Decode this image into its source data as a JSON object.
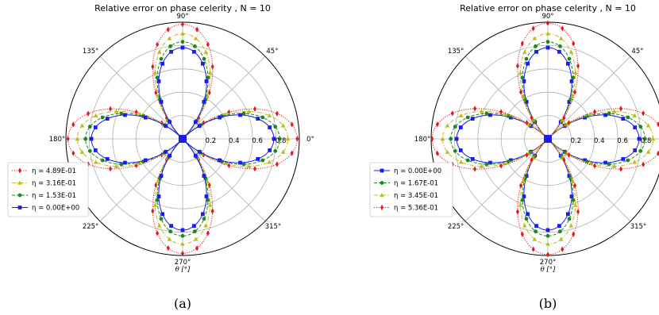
{
  "chart_data": [
    {
      "type": "polar-line",
      "title": "Relative error on phase celerity , N = 10",
      "xlabel": "θ [°]",
      "caption": "(a)",
      "angle_ticks": [
        "0°",
        "45°",
        "90°",
        "135°",
        "180°",
        "225°",
        "270°",
        "315°"
      ],
      "radial_ticks": [
        "0.2",
        "0.4",
        "0.6",
        "0.8"
      ],
      "rlim": [
        0,
        1
      ],
      "grid": true,
      "legend_position": "outside-left",
      "series": [
        {
          "name": "η = 4.89E-01",
          "color": "#e8141e",
          "marker": "diamond",
          "dash": "dotted",
          "peak": 0.97
        },
        {
          "name": "η = 3.16E-01",
          "color": "#bdbd18",
          "marker": "triangle",
          "dash": "dashdot",
          "peak": 0.89
        },
        {
          "name": "η = 1.53E-01",
          "color": "#1a8a1a",
          "marker": "circle",
          "dash": "dashed",
          "peak": 0.82
        },
        {
          "name": "η = 0.00E+00",
          "color": "#1c1cf0",
          "marker": "square",
          "dash": "solid",
          "peak": 0.77
        }
      ]
    },
    {
      "type": "polar-line",
      "title": "Relative error on phase celerity , N = 10",
      "xlabel": "θ [°]",
      "caption": "(b)",
      "angle_ticks": [
        "0°",
        "45°",
        "90°",
        "135°",
        "180°",
        "225°",
        "270°",
        "315°"
      ],
      "radial_ticks": [
        "0.2",
        "0.4",
        "0.6",
        "0.8"
      ],
      "rlim": [
        0,
        1
      ],
      "grid": true,
      "legend_position": "outside-left",
      "series": [
        {
          "name": "η = 0.00E+00",
          "color": "#1c1cf0",
          "marker": "square",
          "dash": "solid",
          "peak": 0.77
        },
        {
          "name": "η = 1.67E-01",
          "color": "#1a8a1a",
          "marker": "circle",
          "dash": "dashed",
          "peak": 0.82
        },
        {
          "name": "η = 3.45E-01",
          "color": "#bdbd18",
          "marker": "triangle",
          "dash": "dashdot",
          "peak": 0.89
        },
        {
          "name": "η = 5.36E-01",
          "color": "#e8141e",
          "marker": "diamond",
          "dash": "dotted",
          "peak": 0.98
        }
      ]
    }
  ]
}
